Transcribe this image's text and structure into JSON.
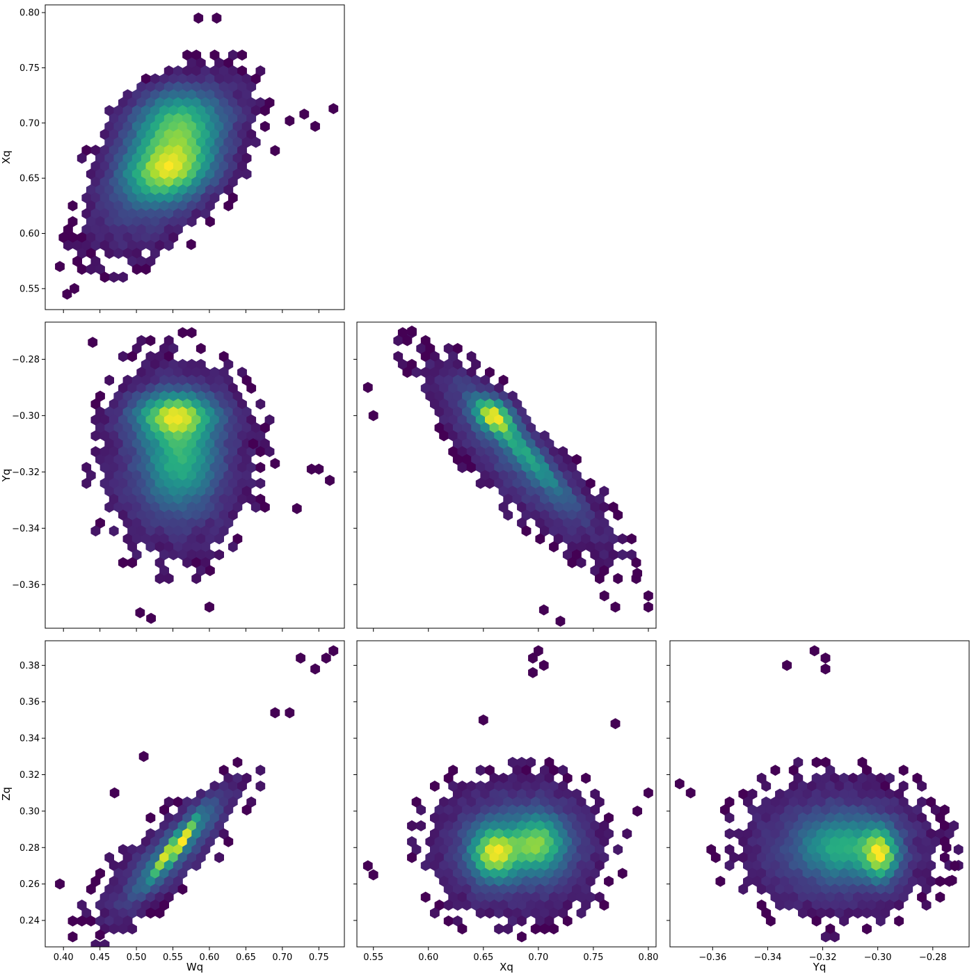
{
  "chart_data": [
    {
      "type": "hexbin",
      "xlabel": "",
      "ylabel": "Xq",
      "xlim": [
        0.375,
        0.785
      ],
      "ylim": [
        0.531,
        0.807
      ],
      "xticks": [
        "0.40",
        "0.45",
        "0.50",
        "0.55",
        "0.60",
        "0.65",
        "0.70",
        "0.75"
      ],
      "xtick_values": [
        0.4,
        0.45,
        0.5,
        0.55,
        0.6,
        0.65,
        0.7,
        0.75
      ],
      "xtick_labels_visible": false,
      "yticks": [
        "0.55",
        "0.60",
        "0.65",
        "0.70",
        "0.75",
        "0.80"
      ],
      "ytick_values": [
        0.55,
        0.6,
        0.65,
        0.7,
        0.75,
        0.8
      ],
      "ytick_labels_visible": true,
      "colormap": "viridis",
      "density_model": {
        "modes": [
          {
            "x": 0.545,
            "y": 0.658,
            "sx": 0.038,
            "sy": 0.018,
            "rho": 0.2,
            "w": 1.0
          },
          {
            "x": 0.555,
            "y": 0.7,
            "sx": 0.04,
            "sy": 0.02,
            "rho": 0.1,
            "w": 0.75
          },
          {
            "x": 0.54,
            "y": 0.66,
            "sx": 0.06,
            "sy": 0.045,
            "rho": 0.55,
            "w": 0.35
          }
        ],
        "outliers": [
          [
            0.77,
            0.713
          ],
          [
            0.745,
            0.697
          ],
          [
            0.73,
            0.708
          ],
          [
            0.71,
            0.702
          ],
          [
            0.69,
            0.675
          ],
          [
            0.61,
            0.795
          ],
          [
            0.585,
            0.795
          ],
          [
            0.395,
            0.57
          ],
          [
            0.405,
            0.545
          ],
          [
            0.415,
            0.55
          ],
          [
            0.575,
            0.59
          ]
        ]
      }
    },
    {
      "type": "hexbin",
      "xlabel": "",
      "ylabel": "Yq",
      "xlim": [
        0.375,
        0.785
      ],
      "ylim": [
        -0.3755,
        -0.2668
      ],
      "xticks": [
        "0.40",
        "0.45",
        "0.50",
        "0.55",
        "0.60",
        "0.65",
        "0.70",
        "0.75"
      ],
      "xtick_values": [
        0.4,
        0.45,
        0.5,
        0.55,
        0.6,
        0.65,
        0.7,
        0.75
      ],
      "xtick_labels_visible": false,
      "yticks": [
        "−0.28",
        "−0.30",
        "−0.32",
        "−0.34",
        "−0.36"
      ],
      "ytick_values": [
        -0.28,
        -0.3,
        -0.32,
        -0.34,
        -0.36
      ],
      "ytick_labels_visible": true,
      "colormap": "viridis",
      "density_model": {
        "modes": [
          {
            "x": 0.553,
            "y": -0.3,
            "sx": 0.035,
            "sy": 0.005,
            "rho": 0.0,
            "w": 1.0
          },
          {
            "x": 0.56,
            "y": -0.315,
            "sx": 0.03,
            "sy": 0.011,
            "rho": 0.0,
            "w": 0.6
          },
          {
            "x": 0.555,
            "y": -0.315,
            "sx": 0.06,
            "sy": 0.02,
            "rho": 0.0,
            "w": 0.3
          }
        ],
        "outliers": [
          [
            0.765,
            -0.323
          ],
          [
            0.75,
            -0.319
          ],
          [
            0.74,
            -0.319
          ],
          [
            0.72,
            -0.333
          ],
          [
            0.69,
            -0.317
          ],
          [
            0.66,
            -0.31
          ],
          [
            0.52,
            -0.372
          ],
          [
            0.505,
            -0.37
          ],
          [
            0.6,
            -0.368
          ],
          [
            0.44,
            -0.274
          ]
        ]
      }
    },
    {
      "type": "hexbin",
      "xlabel": "",
      "ylabel": "",
      "xlim": [
        0.535,
        0.807
      ],
      "ylim": [
        -0.3755,
        -0.2668
      ],
      "xticks": [
        "0.55",
        "0.60",
        "0.65",
        "0.70",
        "0.75",
        "0.80"
      ],
      "xtick_values": [
        0.55,
        0.6,
        0.65,
        0.7,
        0.75,
        0.8
      ],
      "xtick_labels_visible": false,
      "yticks": [
        "−0.28",
        "−0.30",
        "−0.32",
        "−0.34",
        "−0.36"
      ],
      "ytick_values": [
        -0.28,
        -0.3,
        -0.32,
        -0.34,
        -0.36
      ],
      "ytick_labels_visible": false,
      "colormap": "viridis",
      "density_model": {
        "modes": [
          {
            "x": 0.66,
            "y": -0.3,
            "sx": 0.012,
            "sy": 0.004,
            "rho": -0.3,
            "w": 1.0
          },
          {
            "x": 0.685,
            "y": -0.312,
            "sx": 0.028,
            "sy": 0.012,
            "rho": -0.95,
            "w": 0.6
          },
          {
            "x": 0.68,
            "y": -0.315,
            "sx": 0.05,
            "sy": 0.02,
            "rho": -0.85,
            "w": 0.3
          }
        ],
        "outliers": [
          [
            0.545,
            -0.29
          ],
          [
            0.55,
            -0.3
          ],
          [
            0.8,
            -0.364
          ],
          [
            0.8,
            -0.368
          ],
          [
            0.79,
            -0.356
          ],
          [
            0.76,
            -0.364
          ],
          [
            0.77,
            -0.368
          ],
          [
            0.72,
            -0.373
          ],
          [
            0.705,
            -0.369
          ],
          [
            0.585,
            -0.27
          ]
        ]
      }
    },
    {
      "type": "hexbin",
      "xlabel": "Wq",
      "ylabel": "Zq",
      "xlim": [
        0.375,
        0.785
      ],
      "ylim": [
        0.2255,
        0.3935
      ],
      "xticks": [
        "0.40",
        "0.45",
        "0.50",
        "0.55",
        "0.60",
        "0.65",
        "0.70",
        "0.75"
      ],
      "xtick_values": [
        0.4,
        0.45,
        0.5,
        0.55,
        0.6,
        0.65,
        0.7,
        0.75
      ],
      "xtick_labels_visible": true,
      "yticks": [
        "0.24",
        "0.26",
        "0.28",
        "0.30",
        "0.32",
        "0.34",
        "0.36",
        "0.38"
      ],
      "ytick_values": [
        0.24,
        0.26,
        0.28,
        0.3,
        0.32,
        0.34,
        0.36,
        0.38
      ],
      "ytick_labels_visible": true,
      "colormap": "viridis",
      "density_model": {
        "modes": [
          {
            "x": 0.553,
            "y": 0.28,
            "sx": 0.02,
            "sy": 0.01,
            "rho": 0.95,
            "w": 1.0
          },
          {
            "x": 0.555,
            "y": 0.28,
            "sx": 0.04,
            "sy": 0.018,
            "rho": 0.9,
            "w": 0.45
          },
          {
            "x": 0.54,
            "y": 0.275,
            "sx": 0.065,
            "sy": 0.025,
            "rho": 0.8,
            "w": 0.15
          }
        ],
        "outliers": [
          [
            0.77,
            0.388
          ],
          [
            0.76,
            0.384
          ],
          [
            0.745,
            0.378
          ],
          [
            0.725,
            0.384
          ],
          [
            0.71,
            0.354
          ],
          [
            0.69,
            0.354
          ],
          [
            0.395,
            0.26
          ],
          [
            0.45,
            0.232
          ],
          [
            0.47,
            0.31
          ],
          [
            0.51,
            0.33
          ]
        ]
      }
    },
    {
      "type": "hexbin",
      "xlabel": "Xq",
      "ylabel": "",
      "xlim": [
        0.535,
        0.807
      ],
      "ylim": [
        0.2255,
        0.3935
      ],
      "xticks": [
        "0.55",
        "0.60",
        "0.65",
        "0.70",
        "0.75",
        "0.80"
      ],
      "xtick_values": [
        0.55,
        0.6,
        0.65,
        0.7,
        0.75,
        0.8
      ],
      "xtick_labels_visible": true,
      "yticks": [
        "0.24",
        "0.26",
        "0.28",
        "0.30",
        "0.32",
        "0.34",
        "0.36",
        "0.38"
      ],
      "ytick_values": [
        0.24,
        0.26,
        0.28,
        0.3,
        0.32,
        0.34,
        0.36,
        0.38
      ],
      "ytick_labels_visible": false,
      "colormap": "viridis",
      "density_model": {
        "modes": [
          {
            "x": 0.66,
            "y": 0.277,
            "sx": 0.014,
            "sy": 0.009,
            "rho": 0.0,
            "w": 1.0
          },
          {
            "x": 0.7,
            "y": 0.282,
            "sx": 0.016,
            "sy": 0.01,
            "rho": 0.0,
            "w": 0.75
          },
          {
            "x": 0.68,
            "y": 0.28,
            "sx": 0.045,
            "sy": 0.022,
            "rho": 0.0,
            "w": 0.3
          }
        ],
        "outliers": [
          [
            0.7,
            0.388
          ],
          [
            0.695,
            0.384
          ],
          [
            0.705,
            0.38
          ],
          [
            0.695,
            0.376
          ],
          [
            0.545,
            0.27
          ],
          [
            0.55,
            0.265
          ],
          [
            0.79,
            0.3
          ],
          [
            0.8,
            0.31
          ],
          [
            0.65,
            0.35
          ],
          [
            0.77,
            0.348
          ]
        ]
      }
    },
    {
      "type": "hexbin",
      "xlabel": "Yq",
      "ylabel": "",
      "xlim": [
        -0.3755,
        -0.2668
      ],
      "ylim": [
        0.2255,
        0.3935
      ],
      "xticks": [
        "−0.36",
        "−0.34",
        "−0.32",
        "−0.30",
        "−0.28"
      ],
      "xtick_values": [
        -0.36,
        -0.34,
        -0.32,
        -0.3,
        -0.28
      ],
      "xtick_labels_visible": true,
      "yticks": [
        "0.24",
        "0.26",
        "0.28",
        "0.30",
        "0.32",
        "0.34",
        "0.36",
        "0.38"
      ],
      "ytick_values": [
        0.24,
        0.26,
        0.28,
        0.3,
        0.32,
        0.34,
        0.36,
        0.38
      ],
      "ytick_labels_visible": false,
      "colormap": "viridis",
      "density_model": {
        "modes": [
          {
            "x": -0.299,
            "y": 0.276,
            "sx": 0.004,
            "sy": 0.009,
            "rho": 0.0,
            "w": 1.0
          },
          {
            "x": -0.312,
            "y": 0.28,
            "sx": 0.01,
            "sy": 0.01,
            "rho": 0.0,
            "w": 0.55
          },
          {
            "x": -0.315,
            "y": 0.28,
            "sx": 0.02,
            "sy": 0.022,
            "rho": 0.0,
            "w": 0.3
          }
        ],
        "outliers": [
          [
            -0.323,
            0.388
          ],
          [
            -0.319,
            0.384
          ],
          [
            -0.319,
            0.378
          ],
          [
            -0.333,
            0.38
          ],
          [
            -0.372,
            0.315
          ],
          [
            -0.368,
            0.31
          ],
          [
            -0.275,
            0.28
          ],
          [
            -0.272,
            0.27
          ],
          [
            -0.273,
            0.262
          ]
        ]
      }
    }
  ]
}
